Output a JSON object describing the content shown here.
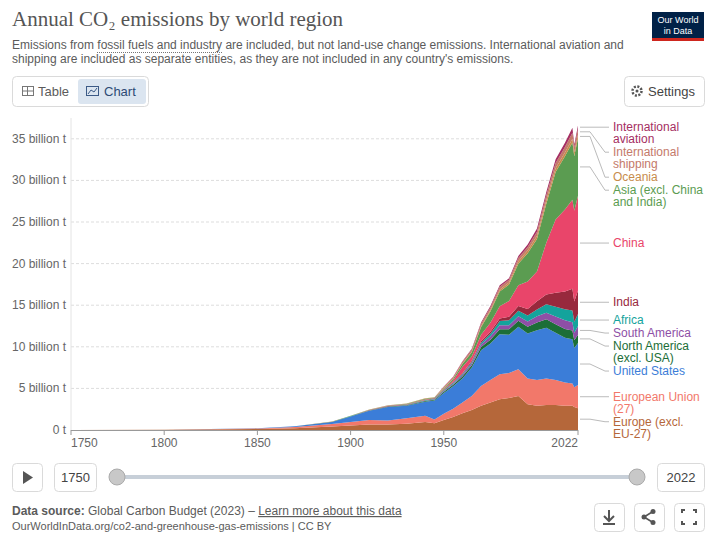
{
  "chart_data": {
    "type": "area",
    "stacked": true,
    "title": "Annual CO₂ emissions by world region",
    "subtitle": "Emissions from fossil fuels and industry are included, but not land-use change emissions. International aviation and shipping are included as separate entities, as they are not included in any country's emissions.",
    "x": [
      1750,
      1800,
      1850,
      1870,
      1890,
      1900,
      1910,
      1920,
      1930,
      1940,
      1945,
      1950,
      1955,
      1960,
      1965,
      1970,
      1975,
      1980,
      1985,
      1990,
      1995,
      2000,
      2005,
      2010,
      2015,
      2019,
      2020,
      2022
    ],
    "xlim": [
      1750,
      2022
    ],
    "xticks": [
      1750,
      1800,
      1850,
      1900,
      1950,
      2022
    ],
    "ylim": [
      0,
      37.5
    ],
    "yticks": [
      {
        "value": 0,
        "label": "0 t"
      },
      {
        "value": 5,
        "label": "5 billion t"
      },
      {
        "value": 10,
        "label": "10 billion t"
      },
      {
        "value": 15,
        "label": "15 billion t"
      },
      {
        "value": 20,
        "label": "20 billion t"
      },
      {
        "value": 25,
        "label": "25 billion t"
      },
      {
        "value": 30,
        "label": "30 billion t"
      },
      {
        "value": 35,
        "label": "35 billion t"
      }
    ],
    "grid": true,
    "series": [
      {
        "name": "Europe (excl. EU-27)",
        "color": "#b5673a",
        "values": [
          0.009,
          0.028,
          0.11,
          0.22,
          0.42,
          0.55,
          0.65,
          0.65,
          0.75,
          0.95,
          0.8,
          1.2,
          1.55,
          2.0,
          2.4,
          2.9,
          3.3,
          3.7,
          3.85,
          4.1,
          3.1,
          2.9,
          3.0,
          3.0,
          2.9,
          2.9,
          2.75,
          2.6
        ]
      },
      {
        "name": "European Union (27)",
        "color": "#f2786a",
        "values": [
          0.002,
          0.008,
          0.07,
          0.15,
          0.3,
          0.42,
          0.55,
          0.5,
          0.65,
          0.75,
          0.45,
          0.75,
          1.0,
          1.3,
          1.7,
          2.4,
          2.7,
          3.0,
          3.0,
          3.2,
          3.1,
          3.1,
          3.2,
          3.0,
          2.8,
          2.7,
          2.4,
          2.8
        ]
      },
      {
        "name": "United States",
        "color": "#3b7dd8",
        "values": [
          0,
          0.0025,
          0.02,
          0.07,
          0.25,
          0.66,
          1.1,
          1.6,
          1.5,
          1.7,
          2.3,
          2.5,
          2.7,
          2.9,
          3.4,
          4.3,
          4.4,
          4.8,
          4.6,
          5.1,
          5.4,
          6.0,
          6.1,
          5.7,
          5.4,
          5.3,
          4.7,
          5.06
        ]
      },
      {
        "name": "North America (excl. USA)",
        "color": "#1c6e37",
        "values": [
          0,
          0,
          0.002,
          0.005,
          0.015,
          0.025,
          0.05,
          0.06,
          0.07,
          0.08,
          0.1,
          0.14,
          0.18,
          0.22,
          0.29,
          0.38,
          0.46,
          0.6,
          0.65,
          0.73,
          0.8,
          0.93,
          1.0,
          1.0,
          1.05,
          1.05,
          0.93,
          0.98
        ]
      },
      {
        "name": "South America",
        "color": "#8e4fa6",
        "values": [
          0,
          0,
          0,
          0.001,
          0.003,
          0.01,
          0.02,
          0.03,
          0.04,
          0.05,
          0.06,
          0.1,
          0.14,
          0.18,
          0.23,
          0.3,
          0.4,
          0.5,
          0.5,
          0.55,
          0.65,
          0.75,
          0.8,
          0.95,
          1.05,
          1.0,
          0.92,
          1.05
        ]
      },
      {
        "name": "Africa",
        "color": "#14a39c",
        "values": [
          0,
          0,
          0,
          0.0005,
          0.002,
          0.005,
          0.015,
          0.025,
          0.03,
          0.05,
          0.06,
          0.08,
          0.1,
          0.12,
          0.16,
          0.22,
          0.3,
          0.5,
          0.58,
          0.65,
          0.72,
          0.8,
          1.0,
          1.17,
          1.3,
          1.42,
          1.3,
          1.45
        ]
      },
      {
        "name": "India",
        "color": "#98293d",
        "values": [
          0,
          0,
          0.0005,
          0.002,
          0.006,
          0.01,
          0.02,
          0.03,
          0.03,
          0.04,
          0.045,
          0.06,
          0.07,
          0.11,
          0.15,
          0.18,
          0.24,
          0.29,
          0.42,
          0.58,
          0.78,
          0.98,
          1.2,
          1.68,
          2.16,
          2.6,
          2.44,
          2.83
        ]
      },
      {
        "name": "China",
        "color": "#e9456a",
        "values": [
          0,
          0,
          0,
          0,
          0.001,
          0.005,
          0.01,
          0.02,
          0.03,
          0.05,
          0.03,
          0.08,
          0.2,
          0.78,
          0.5,
          0.77,
          1.1,
          1.47,
          1.9,
          2.48,
          3.3,
          3.6,
          6.2,
          8.8,
          9.85,
          10.7,
          10.9,
          11.4
        ]
      },
      {
        "name": "Asia (excl. China and India)",
        "color": "#5b9c51",
        "values": [
          0,
          0,
          0.001,
          0.002,
          0.006,
          0.015,
          0.03,
          0.04,
          0.06,
          0.1,
          0.05,
          0.12,
          0.2,
          0.32,
          0.5,
          0.9,
          1.35,
          1.8,
          2.0,
          2.6,
          3.4,
          3.9,
          4.7,
          5.7,
          6.4,
          6.9,
          6.6,
          6.9
        ]
      },
      {
        "name": "Oceania",
        "color": "#c78c4c",
        "values": [
          0,
          0,
          0.001,
          0.003,
          0.008,
          0.012,
          0.02,
          0.025,
          0.03,
          0.035,
          0.04,
          0.05,
          0.06,
          0.07,
          0.09,
          0.12,
          0.16,
          0.2,
          0.22,
          0.3,
          0.33,
          0.38,
          0.42,
          0.45,
          0.45,
          0.45,
          0.43,
          0.43
        ]
      },
      {
        "name": "International shipping",
        "color": "#c47a6a",
        "values": [
          0,
          0,
          0,
          0,
          0,
          0,
          0,
          0,
          0,
          0,
          0,
          0.12,
          0.15,
          0.2,
          0.25,
          0.3,
          0.32,
          0.35,
          0.33,
          0.37,
          0.42,
          0.5,
          0.6,
          0.65,
          0.66,
          0.7,
          0.64,
          0.68
        ]
      },
      {
        "name": "International aviation",
        "color": "#a52e62",
        "values": [
          0,
          0,
          0,
          0,
          0,
          0,
          0,
          0,
          0,
          0,
          0,
          0.03,
          0.05,
          0.07,
          0.1,
          0.15,
          0.16,
          0.18,
          0.2,
          0.26,
          0.3,
          0.37,
          0.4,
          0.44,
          0.52,
          0.6,
          0.3,
          0.43
        ]
      }
    ]
  },
  "subtitle_link": "fossil fuels and industry",
  "logo": [
    "Our World",
    "in Data"
  ],
  "tabs": [
    "Table",
    "Chart"
  ],
  "settings": "Settings",
  "timeline": {
    "start": 1750,
    "end": 2022
  },
  "footer": {
    "source_label": "Data source:",
    "source": "Global Carbon Budget (2023) –",
    "link": "Learn more about this data",
    "url": "OurWorldInData.org/co2-and-greenhouse-gas-emissions | CC BY"
  }
}
